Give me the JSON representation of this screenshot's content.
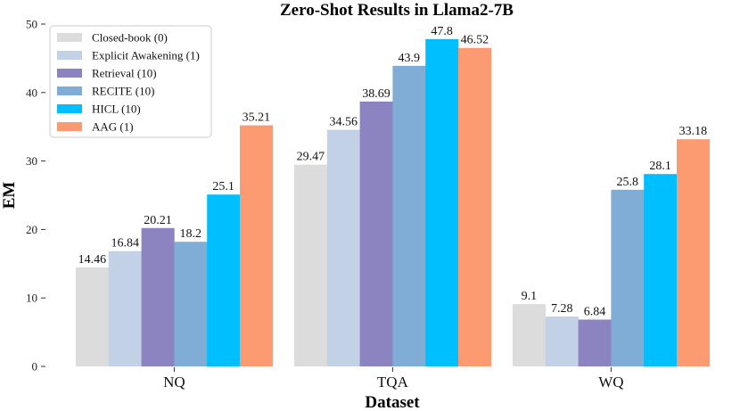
{
  "chart_data": {
    "type": "bar",
    "title": "Zero-Shot Results in Llama2-7B",
    "xlabel": "Dataset",
    "ylabel": "EM",
    "ylim": [
      0,
      50
    ],
    "yticks": [
      0,
      10,
      20,
      30,
      40,
      50
    ],
    "grid": false,
    "legend_position": "top-left",
    "categories": [
      "NQ",
      "TQA",
      "WQ"
    ],
    "series": [
      {
        "name": "Closed-book (0)",
        "color": "#dcdcdc",
        "values": [
          14.46,
          29.47,
          9.1
        ]
      },
      {
        "name": "Explicit Awakening (1)",
        "color": "#c2d1e6",
        "values": [
          16.84,
          34.56,
          7.28
        ]
      },
      {
        "name": "Retrieval (10)",
        "color": "#8c84c0",
        "values": [
          20.21,
          38.69,
          6.84
        ]
      },
      {
        "name": "RECITE (10)",
        "color": "#7fadd5",
        "values": [
          18.2,
          43.9,
          25.8
        ]
      },
      {
        "name": "HICL (10)",
        "color": "#00bfff",
        "values": [
          25.1,
          47.8,
          28.1
        ]
      },
      {
        "name": "AAG (1)",
        "color": "#fc9a72",
        "values": [
          35.21,
          46.52,
          33.18
        ]
      }
    ],
    "data_labels": [
      [
        "14.46",
        "29.47",
        "9.1"
      ],
      [
        "16.84",
        "34.56",
        "7.28"
      ],
      [
        "20.21",
        "38.69",
        "6.84"
      ],
      [
        "18.2",
        "43.9",
        "25.8"
      ],
      [
        "25.1",
        "47.8",
        "28.1"
      ],
      [
        "35.21",
        "46.52",
        "33.18"
      ]
    ]
  }
}
